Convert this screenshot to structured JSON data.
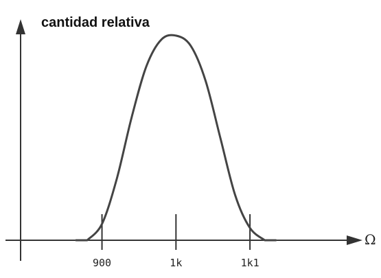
{
  "chart_data": {
    "type": "line",
    "title": "cantidad relativa",
    "xlabel": "Ω",
    "ylabel": "",
    "xlim": [
      790,
      1240
    ],
    "ylim": [
      0,
      1.04
    ],
    "x_ticks": [
      {
        "value": 900,
        "label": "900"
      },
      {
        "value": 1000,
        "label": "1k"
      },
      {
        "value": 1100,
        "label": "1k1"
      }
    ],
    "grid": false,
    "series": [
      {
        "x": [
          880,
          900,
          920,
          940,
          960,
          980,
          1000,
          1020,
          1040,
          1060,
          1080,
          1100,
          1120
        ],
        "values": [
          0.0,
          0.08,
          0.3,
          0.6,
          0.85,
          0.98,
          1.0,
          0.95,
          0.78,
          0.5,
          0.22,
          0.06,
          0.0
        ]
      }
    ]
  }
}
